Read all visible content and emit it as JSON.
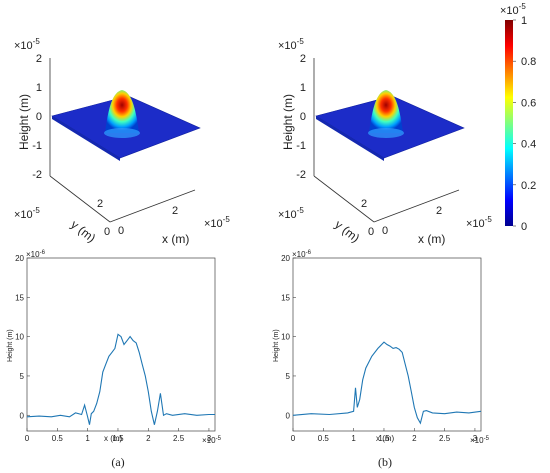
{
  "chart_data": [
    {
      "id": "a_surface",
      "type": "surface3d",
      "zlabel": "Height (m)",
      "xlabel": "x (m)",
      "ylabel": "y (m)",
      "z_exponent": "×10",
      "z_exponent_power": "-5",
      "x_exponent_power": "-5",
      "y_exponent_power": "-5",
      "zlim": [
        -2e-05,
        2e-05
      ],
      "z_ticks": [
        "2",
        "1",
        "0",
        "-1",
        "-2"
      ],
      "x_ticks": [
        "0",
        "2"
      ],
      "y_ticks": [
        "2",
        "0"
      ],
      "peak_height": 1e-05
    },
    {
      "id": "b_surface",
      "type": "surface3d",
      "zlabel": "Height (m)",
      "xlabel": "x (m)",
      "ylabel": "y (m)",
      "z_exponent": "×10",
      "z_exponent_power": "-5",
      "x_exponent_power": "-5",
      "y_exponent_power": "-5",
      "zlim": [
        -2e-05,
        2e-05
      ],
      "z_ticks": [
        "2",
        "1",
        "0",
        "-1",
        "-2"
      ],
      "x_ticks": [
        "0",
        "2"
      ],
      "y_ticks": [
        "2",
        "0"
      ],
      "peak_height": 1e-05
    },
    {
      "id": "colorbar",
      "type": "colorbar",
      "exponent": "×10",
      "exponent_power": "-5",
      "range": [
        0,
        1e-05
      ],
      "ticks": [
        "1",
        "0.8",
        "0.6",
        "0.4",
        "0.2",
        "0"
      ]
    },
    {
      "id": "a_profile",
      "type": "line",
      "xlabel": "x (m)",
      "ylabel": "Height (m)",
      "x_exponent_power": "-5",
      "y_exponent_power": "-6",
      "xlim": [
        0,
        3.1
      ],
      "ylim": [
        -2,
        20
      ],
      "x_ticks": [
        "0",
        "0.5",
        "1",
        "1.5",
        "2",
        "2.5",
        "3"
      ],
      "y_ticks": [
        "20",
        "15",
        "10",
        "5",
        "0"
      ],
      "x": [
        0.0,
        0.2,
        0.4,
        0.55,
        0.7,
        0.8,
        0.9,
        0.95,
        1.0,
        1.03,
        1.06,
        1.1,
        1.15,
        1.2,
        1.25,
        1.3,
        1.35,
        1.4,
        1.45,
        1.5,
        1.55,
        1.6,
        1.65,
        1.7,
        1.75,
        1.8,
        1.85,
        1.9,
        1.95,
        2.0,
        2.05,
        2.1,
        2.15,
        2.2,
        2.25,
        2.3,
        2.4,
        2.6,
        2.8,
        3.0,
        3.1
      ],
      "y": [
        -0.2,
        -0.1,
        -0.2,
        0.0,
        -0.2,
        0.3,
        0.1,
        1.3,
        -0.2,
        -1.2,
        0.2,
        0.5,
        1.5,
        3.0,
        5.5,
        6.5,
        7.5,
        8.0,
        8.5,
        10.3,
        10.0,
        9.0,
        9.5,
        10.0,
        9.5,
        9.2,
        8.0,
        6.5,
        5.0,
        3.0,
        0.5,
        -1.2,
        0.5,
        2.8,
        0.0,
        0.2,
        0.0,
        0.2,
        0.0,
        0.1,
        0.1
      ]
    },
    {
      "id": "b_profile",
      "type": "line",
      "xlabel": "x (m)",
      "ylabel": "Height (m)",
      "x_exponent_power": "-5",
      "y_exponent_power": "-6",
      "xlim": [
        0,
        3.1
      ],
      "ylim": [
        -2,
        20
      ],
      "x_ticks": [
        "0",
        "0.5",
        "1",
        "1.5",
        "2",
        "2.5",
        "3"
      ],
      "y_ticks": [
        "20",
        "15",
        "10",
        "5",
        "0"
      ],
      "x": [
        0.0,
        0.3,
        0.6,
        0.9,
        1.0,
        1.03,
        1.06,
        1.1,
        1.15,
        1.2,
        1.3,
        1.4,
        1.5,
        1.55,
        1.6,
        1.65,
        1.7,
        1.75,
        1.8,
        1.85,
        1.9,
        1.95,
        2.0,
        2.05,
        2.1,
        2.15,
        2.2,
        2.3,
        2.5,
        2.7,
        2.9,
        3.1
      ],
      "y": [
        0.0,
        0.2,
        0.1,
        0.3,
        0.5,
        3.5,
        1.0,
        2.0,
        4.5,
        6.0,
        7.5,
        8.5,
        9.3,
        9.0,
        8.8,
        8.5,
        8.6,
        8.4,
        8.0,
        6.5,
        5.0,
        3.0,
        1.0,
        -0.3,
        -1.0,
        0.5,
        0.6,
        0.3,
        0.2,
        0.4,
        0.3,
        0.5
      ]
    }
  ],
  "captions": {
    "a": "(a)",
    "b": "(b)"
  },
  "colors": {
    "line": "#1f77b4",
    "axis": "#222222"
  }
}
